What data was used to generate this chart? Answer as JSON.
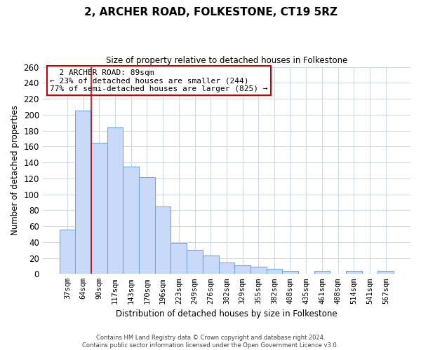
{
  "title": "2, ARCHER ROAD, FOLKESTONE, CT19 5RZ",
  "subtitle": "Size of property relative to detached houses in Folkestone",
  "xlabel": "Distribution of detached houses by size in Folkestone",
  "ylabel": "Number of detached properties",
  "bar_labels": [
    "37sqm",
    "64sqm",
    "90sqm",
    "117sqm",
    "143sqm",
    "170sqm",
    "196sqm",
    "223sqm",
    "249sqm",
    "276sqm",
    "302sqm",
    "329sqm",
    "355sqm",
    "382sqm",
    "408sqm",
    "435sqm",
    "461sqm",
    "488sqm",
    "514sqm",
    "541sqm",
    "567sqm"
  ],
  "bar_values": [
    56,
    205,
    165,
    184,
    135,
    122,
    85,
    39,
    30,
    23,
    14,
    11,
    9,
    6,
    4,
    0,
    4,
    0,
    4,
    0,
    4
  ],
  "bar_color": "#c9daf8",
  "bar_edge_color": "#6fa8dc",
  "highlight_line_color": "#cc0000",
  "annotation_title": "2 ARCHER ROAD: 89sqm",
  "annotation_line1": "← 23% of detached houses are smaller (244)",
  "annotation_line2": "77% of semi-detached houses are larger (825) →",
  "annotation_box_color": "#ffffff",
  "annotation_box_edge_color": "#cc0000",
  "ylim": [
    0,
    260
  ],
  "yticks": [
    0,
    20,
    40,
    60,
    80,
    100,
    120,
    140,
    160,
    180,
    200,
    220,
    240,
    260
  ],
  "footer_line1": "Contains HM Land Registry data © Crown copyright and database right 2024.",
  "footer_line2": "Contains public sector information licensed under the Open Government Licence v3.0.",
  "bg_color": "#ffffff",
  "grid_color": "#d0d8e8"
}
